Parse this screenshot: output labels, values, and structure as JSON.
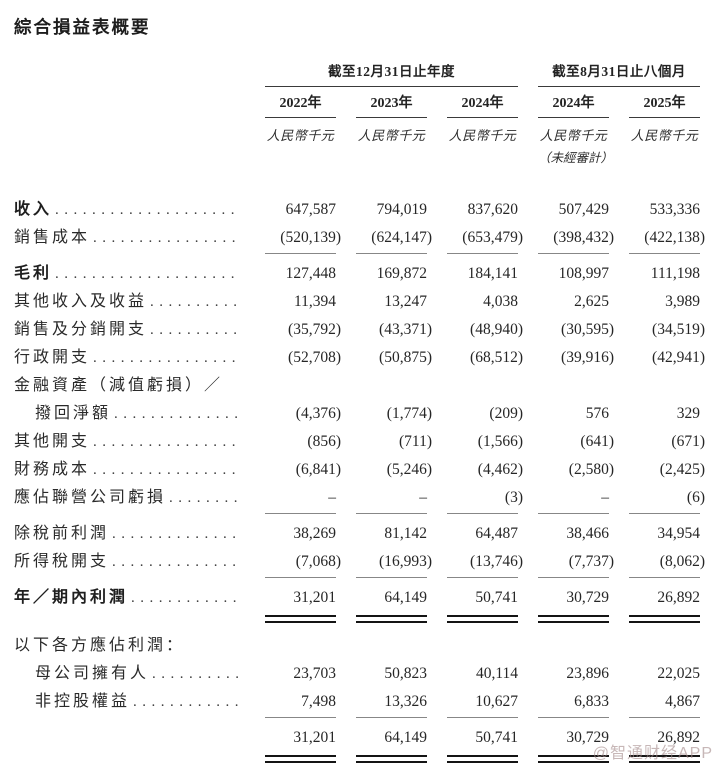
{
  "title": "綜合損益表概要",
  "header": {
    "groups": [
      {
        "label": "截至12月31日止年度",
        "span": 3
      },
      {
        "label": "截至8月31日止八個月",
        "span": 2
      }
    ],
    "years": [
      "2022年",
      "2023年",
      "2024年",
      "2024年",
      "2025年"
    ],
    "currency": "人民幣千元",
    "unaudited_note": "（未經審計）",
    "unaudited_column_index": 3
  },
  "table": {
    "rows": [
      {
        "label": "收入",
        "bold": true,
        "dots": true,
        "rule": "none",
        "values": [
          "647,587",
          "794,019",
          "837,620",
          "507,429",
          "533,336"
        ]
      },
      {
        "label": "銷售成本",
        "dots": true,
        "rule": "single",
        "values": [
          "(520,139)",
          "(624,147)",
          "(653,479)",
          "(398,432)",
          "(422,138)"
        ]
      },
      {
        "label": "毛利",
        "bold": true,
        "dots": true,
        "rule": "none",
        "values": [
          "127,448",
          "169,872",
          "184,141",
          "108,997",
          "111,198"
        ]
      },
      {
        "label": "其他收入及收益",
        "dots": true,
        "rule": "none",
        "values": [
          "11,394",
          "13,247",
          "4,038",
          "2,625",
          "3,989"
        ]
      },
      {
        "label": "銷售及分銷開支",
        "dots": true,
        "rule": "none",
        "values": [
          "(35,792)",
          "(43,371)",
          "(48,940)",
          "(30,595)",
          "(34,519)"
        ]
      },
      {
        "label": "行政開支",
        "dots": true,
        "rule": "none",
        "values": [
          "(52,708)",
          "(50,875)",
          "(68,512)",
          "(39,916)",
          "(42,941)"
        ]
      },
      {
        "label": "金融資產（減值虧損）／",
        "dots": false,
        "rule": "none",
        "values": null
      },
      {
        "label": "撥回淨額",
        "indent": true,
        "dots": true,
        "rule": "none",
        "values": [
          "(4,376)",
          "(1,774)",
          "(209)",
          "576",
          "329"
        ]
      },
      {
        "label": "其他開支",
        "dots": true,
        "rule": "none",
        "values": [
          "(856)",
          "(711)",
          "(1,566)",
          "(641)",
          "(671)"
        ]
      },
      {
        "label": "財務成本",
        "dots": true,
        "rule": "none",
        "values": [
          "(6,841)",
          "(5,246)",
          "(4,462)",
          "(2,580)",
          "(2,425)"
        ]
      },
      {
        "label": "應佔聯營公司虧損",
        "dots": true,
        "rule": "single",
        "values": [
          "–",
          "–",
          "(3)",
          "–",
          "(6)"
        ]
      },
      {
        "label": "除稅前利潤",
        "dots": true,
        "rule": "none",
        "values": [
          "38,269",
          "81,142",
          "64,487",
          "38,466",
          "34,954"
        ]
      },
      {
        "label": "所得稅開支",
        "dots": true,
        "rule": "single",
        "values": [
          "(7,068)",
          "(16,993)",
          "(13,746)",
          "(7,737)",
          "(8,062)"
        ]
      },
      {
        "label": "年／期內利潤",
        "bold": true,
        "dots": true,
        "rule": "double",
        "values": [
          "31,201",
          "64,149",
          "50,741",
          "30,729",
          "26,892"
        ]
      },
      {
        "label": "以下各方應佔利潤：",
        "dots": false,
        "rule": "none",
        "values": null,
        "section_gap": true
      },
      {
        "label": "母公司擁有人",
        "indent": true,
        "dots": true,
        "rule": "none",
        "values": [
          "23,703",
          "50,823",
          "40,114",
          "23,896",
          "22,025"
        ]
      },
      {
        "label": "非控股權益",
        "indent": true,
        "dots": true,
        "rule": "single",
        "values": [
          "7,498",
          "13,326",
          "10,627",
          "6,833",
          "4,867"
        ]
      },
      {
        "label": "",
        "dots": false,
        "rule": "double",
        "values": [
          "31,201",
          "64,149",
          "50,741",
          "30,729",
          "26,892"
        ]
      }
    ]
  },
  "watermark": "@智通财经APP"
}
